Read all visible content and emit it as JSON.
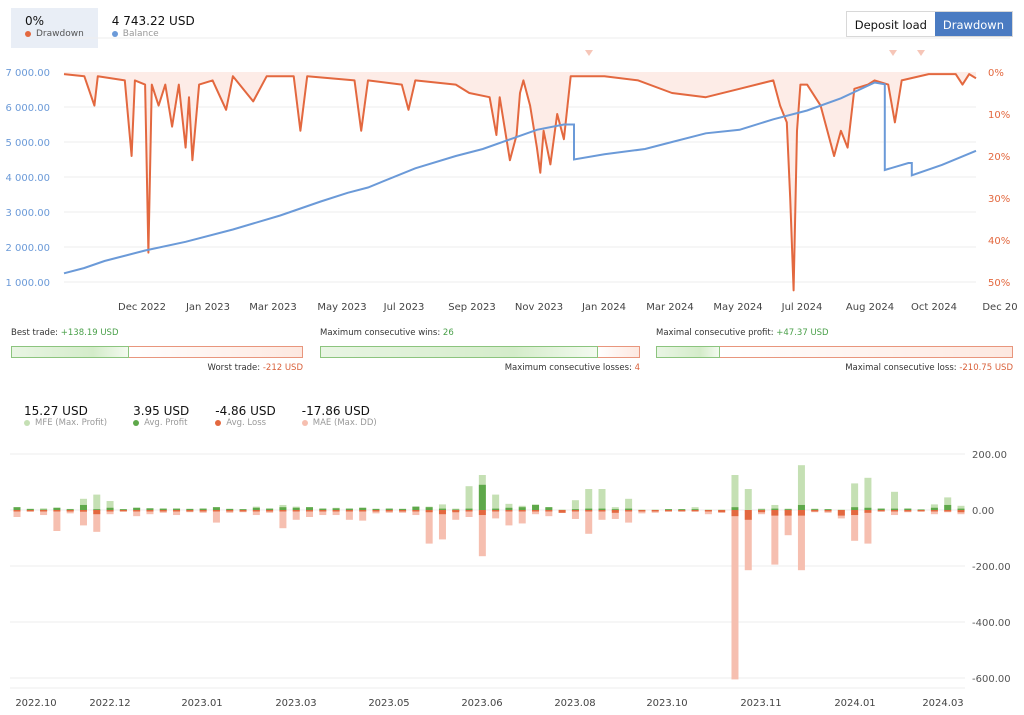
{
  "header": {
    "legend": [
      {
        "value": "0%",
        "label": "Drawdown",
        "color": "#e3683f",
        "active": true
      },
      {
        "value": "4 743.22 USD",
        "label": "Balance",
        "color": "#6b9ad8",
        "active": false
      }
    ],
    "toggle": {
      "deposit_load": "Deposit load",
      "drawdown": "Drawdown",
      "active": "drawdown"
    }
  },
  "stats": {
    "best_trade": {
      "label": "Best trade:",
      "value": "+138.19 USD"
    },
    "worst_trade": {
      "label": "Worst trade:",
      "value": "-212 USD"
    },
    "max_consec_wins": {
      "label": "Maximum consecutive wins:",
      "value": "26"
    },
    "max_consec_losses": {
      "label": "Maximum consecutive losses:",
      "value": "4"
    },
    "max_consec_profit": {
      "label": "Maximal consecutive profit:",
      "value": "+47.37 USD"
    },
    "max_consec_loss": {
      "label": "Maximal consecutive loss:",
      "value": "-210.75 USD"
    }
  },
  "mfe_legend": [
    {
      "value": "15.27 USD",
      "label": "MFE (Max. Profit)",
      "color": "#c5e0b4"
    },
    {
      "value": "3.95 USD",
      "label": "Avg. Profit",
      "color": "#5ea84a"
    },
    {
      "value": "-4.86 USD",
      "label": "Avg. Loss",
      "color": "#e3683f"
    },
    {
      "value": "-17.86 USD",
      "label": "MAE (Max. DD)",
      "color": "#f6bfb0"
    }
  ],
  "colors": {
    "drawdown": "#e3683f",
    "drawdown_fill": "#fdece7",
    "balance": "#6b9ad8",
    "grid": "#eeeeee",
    "mfe": "#c5e0b4",
    "avg_profit": "#5ea84a",
    "avg_loss": "#e3683f",
    "mae": "#f6bfb0"
  },
  "chart_data": [
    {
      "type": "line",
      "title": "Balance & Drawdown",
      "x_tick_labels": [
        "Dec 2022",
        "Jan 2023",
        "Mar 2023",
        "May 2023",
        "Jul 2023",
        "Sep 2023",
        "Nov 2023",
        "Jan 2024",
        "Mar 2024",
        "May 2024",
        "Jul 2024",
        "Aug 2024",
        "Oct 2024",
        "Dec 20"
      ],
      "y_left_ticks": [
        "7 000.00",
        "6 000.00",
        "5 000.00",
        "4 000.00",
        "3 000.00",
        "2 000.00",
        "1 000.00"
      ],
      "y_right_ticks": [
        "0%",
        "10%",
        "20%",
        "30%",
        "40%",
        "50%"
      ],
      "ylim_left": [
        1000,
        7000
      ],
      "ylim_right": [
        0,
        50
      ],
      "grid": true,
      "series": [
        {
          "name": "Balance",
          "axis": "left",
          "points": [
            [
              0,
              1250
            ],
            [
              0.03,
              1400
            ],
            [
              0.06,
              1600
            ],
            [
              0.08,
              1700
            ],
            [
              0.12,
              1900
            ],
            [
              0.18,
              2150
            ],
            [
              0.25,
              2500
            ],
            [
              0.32,
              2900
            ],
            [
              0.38,
              3300
            ],
            [
              0.42,
              3550
            ],
            [
              0.45,
              3700
            ],
            [
              0.52,
              4250
            ],
            [
              0.58,
              4600
            ],
            [
              0.62,
              4800
            ],
            [
              0.7,
              5350
            ],
            [
              0.74,
              5500
            ],
            [
              0.755,
              5500
            ],
            [
              0.755,
              4500
            ],
            [
              0.8,
              4650
            ],
            [
              0.86,
              4800
            ],
            [
              0.9,
              5000
            ],
            [
              0.95,
              5250
            ],
            [
              1.0,
              5350
            ],
            [
              1.05,
              5650
            ],
            [
              1.1,
              5900
            ],
            [
              1.15,
              6250
            ],
            [
              1.2,
              6700
            ],
            [
              1.215,
              6650
            ],
            [
              1.215,
              4200
            ],
            [
              1.25,
              4400
            ],
            [
              1.255,
              4400
            ],
            [
              1.255,
              4050
            ],
            [
              1.3,
              4350
            ],
            [
              1.35,
              4750
            ]
          ]
        },
        {
          "name": "Drawdown",
          "axis": "right",
          "points": [
            [
              0,
              0.5
            ],
            [
              0.03,
              1
            ],
            [
              0.045,
              8
            ],
            [
              0.05,
              1
            ],
            [
              0.09,
              2
            ],
            [
              0.1,
              20
            ],
            [
              0.105,
              2
            ],
            [
              0.12,
              3
            ],
            [
              0.125,
              43
            ],
            [
              0.13,
              3
            ],
            [
              0.14,
              8
            ],
            [
              0.15,
              3
            ],
            [
              0.16,
              13
            ],
            [
              0.17,
              3
            ],
            [
              0.18,
              18
            ],
            [
              0.185,
              6
            ],
            [
              0.19,
              21
            ],
            [
              0.2,
              3
            ],
            [
              0.22,
              2
            ],
            [
              0.24,
              9
            ],
            [
              0.25,
              1
            ],
            [
              0.28,
              7
            ],
            [
              0.3,
              1
            ],
            [
              0.34,
              1
            ],
            [
              0.35,
              14
            ],
            [
              0.36,
              1
            ],
            [
              0.43,
              2
            ],
            [
              0.44,
              14
            ],
            [
              0.45,
              2
            ],
            [
              0.5,
              3
            ],
            [
              0.51,
              9
            ],
            [
              0.52,
              2
            ],
            [
              0.58,
              3
            ],
            [
              0.6,
              5
            ],
            [
              0.63,
              6
            ],
            [
              0.64,
              15
            ],
            [
              0.645,
              6
            ],
            [
              0.66,
              21
            ],
            [
              0.67,
              15
            ],
            [
              0.675,
              5
            ],
            [
              0.68,
              2
            ],
            [
              0.69,
              8
            ],
            [
              0.7,
              18
            ],
            [
              0.705,
              24
            ],
            [
              0.71,
              14
            ],
            [
              0.72,
              22
            ],
            [
              0.73,
              10
            ],
            [
              0.74,
              16
            ],
            [
              0.75,
              1
            ],
            [
              0.8,
              1
            ],
            [
              0.85,
              2
            ],
            [
              0.9,
              5
            ],
            [
              0.95,
              6
            ],
            [
              1.0,
              4
            ],
            [
              1.05,
              2
            ],
            [
              1.06,
              8
            ],
            [
              1.07,
              12
            ],
            [
              1.075,
              30
            ],
            [
              1.08,
              52
            ],
            [
              1.085,
              14
            ],
            [
              1.09,
              3
            ],
            [
              1.1,
              3
            ],
            [
              1.12,
              8
            ],
            [
              1.14,
              20
            ],
            [
              1.15,
              14
            ],
            [
              1.16,
              18
            ],
            [
              1.17,
              4
            ],
            [
              1.19,
              3
            ],
            [
              1.2,
              2
            ],
            [
              1.22,
              3
            ],
            [
              1.23,
              12
            ],
            [
              1.24,
              2
            ],
            [
              1.28,
              0.5
            ],
            [
              1.32,
              0.5
            ],
            [
              1.33,
              3
            ],
            [
              1.34,
              0.5
            ],
            [
              1.35,
              1.5
            ]
          ]
        }
      ]
    },
    {
      "type": "bar",
      "title": "MFE / MAE distribution",
      "x_tick_labels": [
        "2022.10",
        "2022.12",
        "2023.01",
        "2023.03",
        "2023.05",
        "2023.06",
        "2023.08",
        "2023.10",
        "2023.11",
        "2024.01",
        "2024.03"
      ],
      "y_ticks": [
        "200.00",
        "0.00",
        "-200.00",
        "-400.00",
        "-600.00"
      ],
      "ylim": [
        -600,
        200
      ],
      "grid": true,
      "series_names": [
        "MFE (Max. Profit)",
        "Avg. Profit",
        "Avg. Loss",
        "MAE (Max. DD)"
      ],
      "bars": [
        {
          "mfe": 10,
          "p": 10,
          "l": -2,
          "mae": -25
        },
        {
          "mfe": 4,
          "p": 4,
          "l": -2,
          "mae": -5
        },
        {
          "mfe": 6,
          "p": 2,
          "l": -3,
          "mae": -18
        },
        {
          "mfe": 8,
          "p": 8,
          "l": -3,
          "mae": -75
        },
        {
          "mfe": 4,
          "p": 3,
          "l": -3,
          "mae": -12
        },
        {
          "mfe": 40,
          "p": 18,
          "l": -6,
          "mae": -55
        },
        {
          "mfe": 55,
          "p": 3,
          "l": -15,
          "mae": -78
        },
        {
          "mfe": 32,
          "p": 8,
          "l": -4,
          "mae": -15
        },
        {
          "mfe": 3,
          "p": 3,
          "l": -2,
          "mae": -5
        },
        {
          "mfe": 8,
          "p": 8,
          "l": -3,
          "mae": -22
        },
        {
          "mfe": 6,
          "p": 6,
          "l": -2,
          "mae": -15
        },
        {
          "mfe": 5,
          "p": 5,
          "l": -2,
          "mae": -10
        },
        {
          "mfe": 5,
          "p": 5,
          "l": -2,
          "mae": -18
        },
        {
          "mfe": 4,
          "p": 4,
          "l": -2,
          "mae": -8
        },
        {
          "mfe": 5,
          "p": 5,
          "l": -2,
          "mae": -10
        },
        {
          "mfe": 10,
          "p": 10,
          "l": -2,
          "mae": -45
        },
        {
          "mfe": 4,
          "p": 4,
          "l": -2,
          "mae": -10
        },
        {
          "mfe": 3,
          "p": 3,
          "l": -2,
          "mae": -8
        },
        {
          "mfe": 12,
          "p": 8,
          "l": -3,
          "mae": -18
        },
        {
          "mfe": 5,
          "p": 5,
          "l": -2,
          "mae": -10
        },
        {
          "mfe": 18,
          "p": 10,
          "l": -3,
          "mae": -65
        },
        {
          "mfe": 12,
          "p": 8,
          "l": -3,
          "mae": -35
        },
        {
          "mfe": 10,
          "p": 10,
          "l": -2,
          "mae": -25
        },
        {
          "mfe": 5,
          "p": 5,
          "l": -2,
          "mae": -18
        },
        {
          "mfe": 8,
          "p": 6,
          "l": -3,
          "mae": -18
        },
        {
          "mfe": 5,
          "p": 5,
          "l": -2,
          "mae": -35
        },
        {
          "mfe": 8,
          "p": 8,
          "l": -2,
          "mae": -38
        },
        {
          "mfe": 4,
          "p": 4,
          "l": -2,
          "mae": -12
        },
        {
          "mfe": 5,
          "p": 5,
          "l": -2,
          "mae": -10
        },
        {
          "mfe": 4,
          "p": 4,
          "l": -2,
          "mae": -10
        },
        {
          "mfe": 12,
          "p": 12,
          "l": -3,
          "mae": -18
        },
        {
          "mfe": 12,
          "p": 10,
          "l": -8,
          "mae": -120
        },
        {
          "mfe": 20,
          "p": 5,
          "l": -15,
          "mae": -105
        },
        {
          "mfe": 5,
          "p": 2,
          "l": -8,
          "mae": -35
        },
        {
          "mfe": 85,
          "p": 5,
          "l": -5,
          "mae": -25
        },
        {
          "mfe": 125,
          "p": 90,
          "l": -18,
          "mae": -165
        },
        {
          "mfe": 55,
          "p": 5,
          "l": -5,
          "mae": -30
        },
        {
          "mfe": 22,
          "p": 8,
          "l": -5,
          "mae": -55
        },
        {
          "mfe": 15,
          "p": 10,
          "l": -4,
          "mae": -48
        },
        {
          "mfe": 20,
          "p": 18,
          "l": -4,
          "mae": -15
        },
        {
          "mfe": 10,
          "p": 10,
          "l": -5,
          "mae": -22
        },
        {
          "mfe": 2,
          "p": 0,
          "l": -10,
          "mae": -10
        },
        {
          "mfe": 35,
          "p": 3,
          "l": -3,
          "mae": -32
        },
        {
          "mfe": 75,
          "p": 5,
          "l": -5,
          "mae": -85
        },
        {
          "mfe": 75,
          "p": 5,
          "l": -3,
          "mae": -35
        },
        {
          "mfe": 10,
          "p": 3,
          "l": -10,
          "mae": -32
        },
        {
          "mfe": 40,
          "p": 5,
          "l": -3,
          "mae": -45
        },
        {
          "mfe": 2,
          "p": 0,
          "l": -5,
          "mae": -12
        },
        {
          "mfe": 2,
          "p": 0,
          "l": -3,
          "mae": -10
        },
        {
          "mfe": 3,
          "p": 3,
          "l": -1,
          "mae": -3
        },
        {
          "mfe": 3,
          "p": 3,
          "l": -2,
          "mae": -5
        },
        {
          "mfe": 10,
          "p": 3,
          "l": -3,
          "mae": -5
        },
        {
          "mfe": 2,
          "p": 0,
          "l": -5,
          "mae": -15
        },
        {
          "mfe": 2,
          "p": 0,
          "l": -8,
          "mae": -10
        },
        {
          "mfe": 125,
          "p": 10,
          "l": -22,
          "mae": -605
        },
        {
          "mfe": 75,
          "p": 0,
          "l": -35,
          "mae": -215
        },
        {
          "mfe": 5,
          "p": 2,
          "l": -8,
          "mae": -15
        },
        {
          "mfe": 18,
          "p": 5,
          "l": -20,
          "mae": -195
        },
        {
          "mfe": 5,
          "p": 3,
          "l": -20,
          "mae": -90
        },
        {
          "mfe": 160,
          "p": 18,
          "l": -20,
          "mae": -215
        },
        {
          "mfe": 5,
          "p": 3,
          "l": -5,
          "mae": -8
        },
        {
          "mfe": 3,
          "p": 3,
          "l": -5,
          "mae": -10
        },
        {
          "mfe": 2,
          "p": 0,
          "l": -20,
          "mae": -30
        },
        {
          "mfe": 95,
          "p": 10,
          "l": -18,
          "mae": -110
        },
        {
          "mfe": 115,
          "p": 8,
          "l": -10,
          "mae": -120
        },
        {
          "mfe": 5,
          "p": 5,
          "l": -3,
          "mae": -5
        },
        {
          "mfe": 65,
          "p": 5,
          "l": -3,
          "mae": -18
        },
        {
          "mfe": 5,
          "p": 5,
          "l": -3,
          "mae": -8
        },
        {
          "mfe": 2,
          "p": 2,
          "l": -1,
          "mae": -2
        },
        {
          "mfe": 20,
          "p": 8,
          "l": -5,
          "mae": -15
        },
        {
          "mfe": 45,
          "p": 18,
          "l": -4,
          "mae": -8
        },
        {
          "mfe": 15,
          "p": 5,
          "l": -8,
          "mae": -15
        }
      ]
    }
  ]
}
